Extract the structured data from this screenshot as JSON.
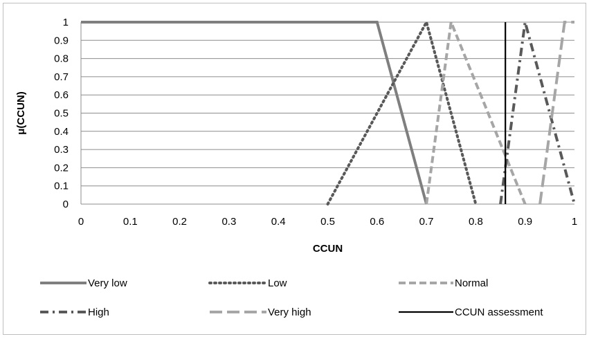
{
  "chart_data": {
    "type": "line",
    "title": "",
    "xlabel": "CCUN",
    "ylabel": "μ(CCUN)",
    "xlim": [
      0,
      1
    ],
    "ylim": [
      0,
      1
    ],
    "x_ticks": [
      "0",
      "0.1",
      "0.2",
      "0.3",
      "0.4",
      "0.5",
      "0.6",
      "0.7",
      "0.8",
      "0.9",
      "1"
    ],
    "y_ticks": [
      "0",
      "0.1",
      "0.2",
      "0.3",
      "0.4",
      "0.5",
      "0.6",
      "0.7",
      "0.8",
      "0.9",
      "1"
    ],
    "grid": "horizontal",
    "legend_position": "bottom",
    "series": [
      {
        "name": "Very low",
        "style": "solid",
        "color": "#7f7f7f",
        "x": [
          0,
          0.6,
          0.7
        ],
        "y": [
          1,
          1,
          0
        ]
      },
      {
        "name": "Low",
        "style": "dotted",
        "color": "#595959",
        "x": [
          0.5,
          0.7,
          0.8
        ],
        "y": [
          0,
          1,
          0
        ]
      },
      {
        "name": "Normal",
        "style": "dashed",
        "color": "#a6a6a6",
        "x": [
          0.7,
          0.75,
          0.9
        ],
        "y": [
          0,
          1,
          0
        ]
      },
      {
        "name": "High",
        "style": "dash-dot",
        "color": "#595959",
        "x": [
          0.85,
          0.9,
          1.0
        ],
        "y": [
          0,
          1,
          0
        ]
      },
      {
        "name": "Very high",
        "style": "long-dash",
        "color": "#a6a6a6",
        "x": [
          0.93,
          0.98,
          1.0
        ],
        "y": [
          0,
          1,
          1
        ]
      },
      {
        "name": "CCUN assessment",
        "style": "solid",
        "color": "#000000",
        "x": [
          0.86,
          0.86
        ],
        "y": [
          0,
          1
        ]
      }
    ]
  }
}
